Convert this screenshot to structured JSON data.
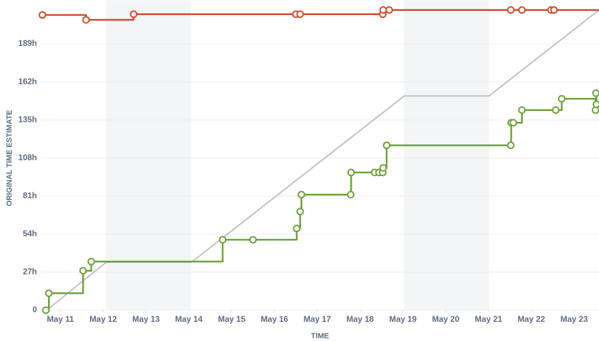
{
  "chart_data": {
    "type": "step-line",
    "x_label": "TIME",
    "y_label": "ORIGINAL TIME ESTIMATE",
    "xlim": [
      10.55,
      23.58
    ],
    "xticks": [
      {
        "value": 11,
        "label": "May 11"
      },
      {
        "value": 12,
        "label": "May 12"
      },
      {
        "value": 13,
        "label": "May 13"
      },
      {
        "value": 14,
        "label": "May 14"
      },
      {
        "value": 15,
        "label": "May 15"
      },
      {
        "value": 16,
        "label": "May 16"
      },
      {
        "value": 17,
        "label": "May 17"
      },
      {
        "value": 18,
        "label": "May 18"
      },
      {
        "value": 19,
        "label": "May 19"
      },
      {
        "value": 20,
        "label": "May 20"
      },
      {
        "value": 21,
        "label": "May 21"
      },
      {
        "value": 22,
        "label": "May 22"
      },
      {
        "value": 23,
        "label": "May 23"
      }
    ],
    "ylim": [
      0,
      215
    ],
    "yticks": [
      0,
      {
        "value": 27,
        "label": "27h"
      },
      {
        "value": 54,
        "label": "54h"
      },
      {
        "value": 81,
        "label": "81h"
      },
      {
        "value": 108,
        "label": "108h"
      },
      {
        "value": 135,
        "label": "135h"
      },
      {
        "value": 162,
        "label": "162h"
      },
      {
        "value": 189,
        "label": "189h"
      }
    ],
    "grid": true,
    "shaded_ranges": [
      [
        12.07,
        14.06
      ],
      [
        19.03,
        21.01
      ]
    ],
    "shade_color": "#f4f5f7",
    "series": [
      {
        "color": "#c1c1c1",
        "step": false,
        "markers": false,
        "x": [
          10.68,
          12.07,
          14.06,
          19.03,
          21.01,
          23.58
        ],
        "values": [
          0,
          34,
          34,
          152,
          152,
          213
        ]
      },
      {
        "color": "#d04a2a",
        "step": true,
        "markers": true,
        "x": [
          10.58,
          11.6,
          12.71,
          16.5,
          16.6,
          18.53,
          18.54,
          18.68,
          21.52,
          21.78,
          22.46,
          22.53
        ],
        "values": [
          209.5,
          206,
          210,
          210,
          210,
          210,
          213,
          213,
          213,
          213,
          213,
          213
        ]
      },
      {
        "color": "#6aa336",
        "step": true,
        "markers": true,
        "x": [
          10.66,
          10.73,
          11.53,
          11.72,
          14.79,
          15.5,
          16.52,
          16.6,
          16.63,
          17.78,
          17.79,
          18.34,
          18.44,
          18.53,
          18.54,
          18.62,
          21.52,
          21.53,
          21.58,
          21.78,
          22.57,
          22.71,
          23.5,
          23.51,
          23.52
        ],
        "values": [
          0,
          12,
          28,
          34.5,
          50,
          50,
          58,
          70,
          82,
          82,
          97.7,
          97.7,
          97.7,
          97.7,
          101,
          117,
          117,
          133,
          133,
          142,
          142,
          150,
          142,
          154,
          146
        ]
      }
    ]
  }
}
